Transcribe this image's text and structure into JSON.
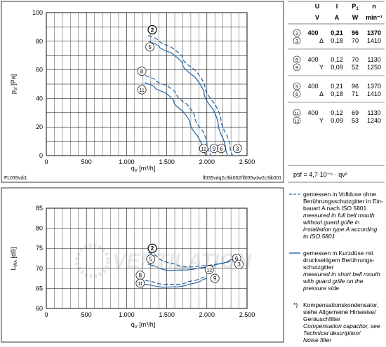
{
  "chart_data": [
    {
      "type": "line",
      "title": "",
      "xlabel": "qv [m³/h]",
      "ylabel": "psf [Pa]",
      "xlim": [
        0,
        2500
      ],
      "ylim": [
        0,
        100
      ],
      "x_ticks": [
        "0",
        "500",
        "1.000",
        "1.500",
        "2.000",
        "2.500"
      ],
      "y_ticks": [
        "0",
        "20",
        "40",
        "60",
        "80",
        "100"
      ],
      "grid": true,
      "footer_left": "FL035vdi1",
      "footer_right": "fl035vdq2c3ik002/fl035vdw2c3ik001",
      "series": [
        {
          "name": "2",
          "style": "dashed",
          "x": [
            1270,
            1550,
            1850,
            2100,
            2250,
            2320
          ],
          "y": [
            84,
            76,
            60,
            36,
            14,
            0
          ]
        },
        {
          "name": "5",
          "style": "solid",
          "x": [
            1270,
            1550,
            1850,
            2080,
            2200,
            2260
          ],
          "y": [
            80,
            72,
            55,
            32,
            12,
            0
          ]
        },
        {
          "name": "8",
          "style": "dashed",
          "x": [
            1230,
            1500,
            1750,
            1950,
            2050
          ],
          "y": [
            56,
            49,
            36,
            17,
            0
          ]
        },
        {
          "name": "11",
          "style": "solid",
          "x": [
            1230,
            1480,
            1700,
            1880,
            1990
          ],
          "y": [
            51,
            44,
            31,
            14,
            0
          ]
        }
      ],
      "markers": [
        {
          "label": "2",
          "x": 1320,
          "y": 88
        },
        {
          "label": "5",
          "x": 1290,
          "y": 76
        },
        {
          "label": "8",
          "x": 1190,
          "y": 59
        },
        {
          "label": "11",
          "x": 1190,
          "y": 46
        },
        {
          "label": "12",
          "x": 1960,
          "y": 5
        },
        {
          "label": "9",
          "x": 2090,
          "y": 5
        },
        {
          "label": "6",
          "x": 2180,
          "y": 5
        },
        {
          "label": "3",
          "x": 2380,
          "y": 5
        }
      ]
    },
    {
      "type": "line",
      "title": "",
      "xlabel": "qv [m³/h]",
      "ylabel": "LwA [dB]",
      "xlim": [
        0,
        2500
      ],
      "ylim": [
        60,
        85
      ],
      "x_ticks": [
        "0",
        "500",
        "1.000",
        "1.500",
        "2.000",
        "2.500"
      ],
      "y_ticks": [
        "60",
        "65",
        "70",
        "75",
        "80",
        "85"
      ],
      "grid": true,
      "series": [
        {
          "name": "2",
          "style": "dashed",
          "x": [
            1270,
            1500,
            1750,
            2000,
            2200,
            2330
          ],
          "y": [
            74,
            71.5,
            70.3,
            70.7,
            71.3,
            71.8
          ]
        },
        {
          "name": "5",
          "style": "solid",
          "x": [
            1270,
            1500,
            1750,
            2000,
            2200,
            2330
          ],
          "y": [
            71,
            69.5,
            69.6,
            70.3,
            71.3,
            72.3
          ]
        },
        {
          "name": "8",
          "style": "dashed",
          "x": [
            1230,
            1450,
            1650,
            1850,
            2000
          ],
          "y": [
            67,
            66,
            66,
            67,
            68
          ]
        },
        {
          "name": "11",
          "style": "solid",
          "x": [
            1230,
            1450,
            1650,
            1850,
            2000
          ],
          "y": [
            66,
            65.3,
            65.4,
            66.3,
            67.5
          ]
        }
      ],
      "markers": [
        {
          "label": "2",
          "x": 1320,
          "y": 75
        },
        {
          "label": "5",
          "x": 1300,
          "y": 72.3
        },
        {
          "label": "8",
          "x": 1170,
          "y": 68.3
        },
        {
          "label": "11",
          "x": 1170,
          "y": 66.3
        },
        {
          "label": "12",
          "x": 2030,
          "y": 69.7
        },
        {
          "label": "9",
          "x": 2100,
          "y": 67.5
        },
        {
          "label": "6",
          "x": 2370,
          "y": 72.5
        },
        {
          "label": "3",
          "x": 2400,
          "y": 71.0
        }
      ]
    }
  ],
  "table": {
    "head_symbols": [
      "U",
      "I",
      "P1",
      "n"
    ],
    "head_units": [
      "V",
      "A",
      "W",
      "min⁻¹"
    ],
    "groups": [
      [
        {
          "no": "2",
          "u": "400",
          "conn": "",
          "i": "0,21",
          "p": "96",
          "n": "1370",
          "bold": true
        },
        {
          "no": "3",
          "u": "",
          "conn": "Δ",
          "i": "0,18",
          "p": "70",
          "n": "1410",
          "bold": false
        }
      ],
      [
        {
          "no": "8",
          "u": "400",
          "conn": "",
          "i": "0,12",
          "p": "70",
          "n": "1130",
          "bold": false
        },
        {
          "no": "9",
          "u": "",
          "conn": "Y",
          "i": "0,09",
          "p": "52",
          "n": "1250",
          "bold": false
        }
      ],
      [
        {
          "no": "5",
          "u": "400",
          "conn": "",
          "i": "0,21",
          "p": "96",
          "n": "1370",
          "bold": false
        },
        {
          "no": "6",
          "u": "",
          "conn": "Δ",
          "i": "0,18",
          "p": "71",
          "n": "1410",
          "bold": false
        }
      ],
      [
        {
          "no": "11",
          "u": "400",
          "conn": "",
          "i": "0,12",
          "p": "69",
          "n": "1130",
          "bold": false
        },
        {
          "no": "12",
          "u": "",
          "conn": "Y",
          "i": "0,09",
          "p": "53",
          "n": "1240",
          "bold": false
        }
      ]
    ],
    "formula": "psf = 4,7·10⁻⁶ · qv²"
  },
  "legend": {
    "dashed": [
      "gemessen in Vollduse ohne",
      "Berührungsschutzgitter in Ein-",
      "bauart A nach ISO 5801"
    ],
    "dashed_en": [
      "measured in full bell mouth",
      "without guard grille in",
      "installation type A according",
      "to ISO 5801"
    ],
    "solid": [
      "gemessen in Kurzdüse mit",
      "druckseitigem Berührungs-",
      "schutzgitter"
    ],
    "solid_en": [
      "measured in short bell mouth",
      "with guard grille on the",
      "pressure side"
    ],
    "note_marker": "*)",
    "note": [
      "Kompensationskondensator,",
      "siehe Allgemeine Hinweise/",
      "Geräuschfilter"
    ],
    "note_en": [
      "Compensation capacitor, see",
      "Technical description/",
      "Noise filter"
    ]
  },
  "watermark": "VENTILATION",
  "colors": {
    "curve": "#2b6aa6",
    "frame": "#000000",
    "grid": "#000000"
  }
}
